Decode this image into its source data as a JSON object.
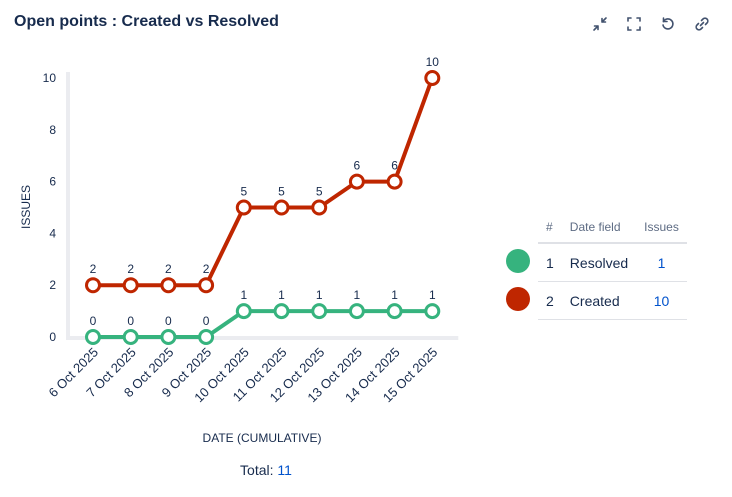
{
  "title": "Open points : Created vs Resolved",
  "toolbar": {
    "icons": [
      "minimize-icon",
      "fullscreen-icon",
      "refresh-icon",
      "link-icon"
    ]
  },
  "chart_data": {
    "type": "line",
    "ylabel": "ISSUES",
    "xlabel": "DATE (CUMULATIVE)",
    "categories": [
      "6 Oct 2025",
      "7 Oct 2025",
      "8 Oct 2025",
      "9 Oct 2025",
      "10 Oct 2025",
      "11 Oct 2025",
      "12 Oct 2025",
      "13 Oct 2025",
      "14 Oct 2025",
      "15 Oct 2025"
    ],
    "yticks": [
      0,
      2,
      4,
      6,
      8,
      10
    ],
    "ylim": [
      0,
      10
    ],
    "grid": false,
    "series": [
      {
        "name": "Created",
        "color": "#bf2600",
        "values": [
          2,
          2,
          2,
          2,
          5,
          5,
          5,
          6,
          6,
          10
        ]
      },
      {
        "name": "Resolved",
        "color": "#36b37e",
        "values": [
          0,
          0,
          0,
          0,
          1,
          1,
          1,
          1,
          1,
          1
        ]
      }
    ],
    "legend_position": "right"
  },
  "legend": {
    "headers": [
      "#",
      "Date field",
      "Issues"
    ],
    "rows": [
      {
        "num": "1",
        "field": "Resolved",
        "issues": "1",
        "color": "#36b37e"
      },
      {
        "num": "2",
        "field": "Created",
        "issues": "10",
        "color": "#bf2600"
      }
    ]
  },
  "total": {
    "label": "Total:",
    "value": "11"
  }
}
